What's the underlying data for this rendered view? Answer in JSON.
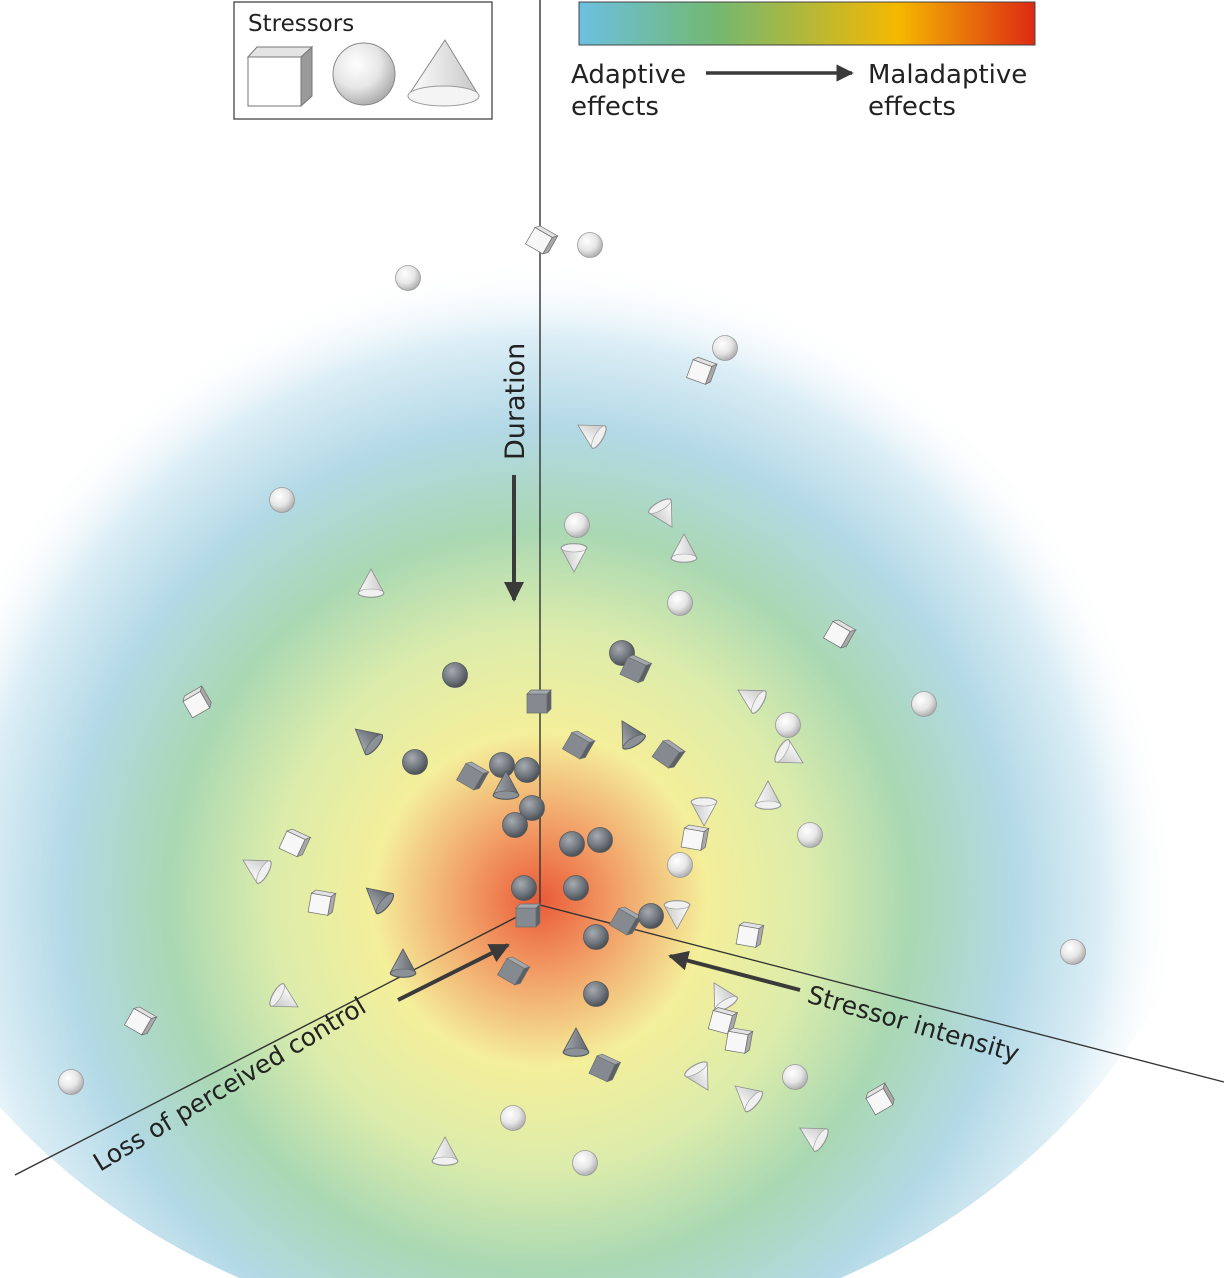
{
  "legend": {
    "title": "Stressors",
    "shapes": [
      "cube-icon",
      "sphere-icon",
      "cone-icon"
    ]
  },
  "colorbar": {
    "stops": [
      "#6cc0e0",
      "#72b872",
      "#f5b800",
      "#dc2a14"
    ],
    "left_label_1": "Adaptive",
    "left_label_2": "effects",
    "right_label_1": "Maladaptive",
    "right_label_2": "effects"
  },
  "axes": {
    "vertical": "Duration",
    "left": "Loss of perceived control",
    "right": "Stressor intensity"
  },
  "colors": {
    "light_shape": "#f2f2f2",
    "dark_shape": "#7d8288",
    "axis": "#333333"
  }
}
